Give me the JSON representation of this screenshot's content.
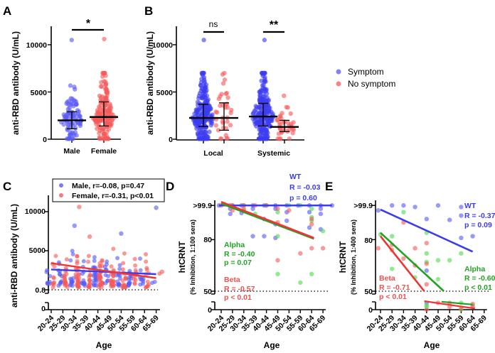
{
  "colors": {
    "blue": "#3b3bf0",
    "red": "#f03434",
    "green": "#21a321",
    "blue_point": "#5a5af5",
    "red_point": "#f55a5a",
    "green_point": "#4fdc4f"
  },
  "chart_data": [
    {
      "panel": "A",
      "type": "scatter",
      "ylabel": "anti-RBD antibody (U/mL)",
      "ylim": [
        0,
        12000
      ],
      "yticks": [
        "0",
        "5000",
        "10000"
      ],
      "categories": [
        "Male",
        "Female"
      ],
      "groups": [
        {
          "name": "Male",
          "color": "blue",
          "median": 2000,
          "q1": 1100,
          "q3": 2900,
          "max": 10500
        },
        {
          "name": "Female",
          "color": "red",
          "median": 2350,
          "q1": 1400,
          "q3": 3950,
          "max": 10600
        }
      ],
      "significance": "*"
    },
    {
      "panel": "B",
      "type": "scatter",
      "ylabel": "anti-RBD antibody (U/mL)",
      "ylim": [
        0,
        12000
      ],
      "yticks": [
        "0",
        "5000",
        "10000"
      ],
      "categories": [
        "Local",
        "Systemic"
      ],
      "legend": [
        "Symptom",
        "No symptom"
      ],
      "legend_position": "right",
      "groups": [
        {
          "category": "Local",
          "series": "Symptom",
          "median": 2250,
          "q1": 1350,
          "q3": 3700,
          "max": 10500
        },
        {
          "category": "Local",
          "series": "No symptom",
          "median": 2250,
          "q1": 950,
          "q3": 3850,
          "max": 5900
        },
        {
          "category": "Systemic",
          "series": "Symptom",
          "median": 2400,
          "q1": 1400,
          "q3": 3800,
          "max": 10500
        },
        {
          "category": "Systemic",
          "series": "No symptom",
          "median": 1300,
          "q1": 800,
          "q3": 2000,
          "max": 4600
        }
      ],
      "significance": [
        "ns",
        "**"
      ]
    },
    {
      "panel": "C",
      "type": "scatter",
      "xlabel": "Age",
      "ylabel": "anti-RBD antibody (U/mL)",
      "yticks": [
        "0",
        "0.8",
        "5000",
        "10000"
      ],
      "ylim": [
        0,
        12000
      ],
      "categories": [
        "20-24",
        "25-29",
        "30-34",
        "35-39",
        "40-44",
        "45-49",
        "50-54",
        "55-59",
        "60-64",
        "65-69"
      ],
      "legend": [
        "Male, r=-0.08, p=0.47",
        "Female, r=-0.31, p<0.01"
      ],
      "legend_position": "top",
      "fits": [
        {
          "series": "Male",
          "from": [
            0,
            2600
          ],
          "to": [
            9,
            2000
          ]
        },
        {
          "series": "Female",
          "from": [
            0,
            3400
          ],
          "to": [
            9,
            1500
          ]
        }
      ]
    },
    {
      "panel": "D",
      "type": "scatter",
      "xlabel": "Age",
      "ylabel": "htCRNT",
      "ylabel2": "(% Inhibition, 1:100 sera)",
      "yticks": [
        "0",
        "50",
        "80",
        ">99.9"
      ],
      "categories": [
        "20-24",
        "25-29",
        "30-34",
        "35-39",
        "40-44",
        "45-49",
        "50-54",
        "55-59",
        "60-64",
        "65-69"
      ],
      "annotations": {
        "wt": [
          "WT",
          "R = -0.03",
          "p = 0.60"
        ],
        "alpha": [
          "Alpha",
          "R = -0.40",
          "p = 0.07"
        ],
        "beta": [
          "Beta",
          "R = -0.57",
          "p < 0.01"
        ]
      },
      "series": [
        {
          "name": "WT",
          "color": "blue",
          "points": [
            [
              -0.2,
              99.9
            ],
            [
              0.8,
              99.9
            ],
            [
              0.8,
              98
            ],
            [
              0.8,
              95
            ],
            [
              1.8,
              99.9
            ],
            [
              1.8,
              95.5
            ],
            [
              2.8,
              99.9
            ],
            [
              2.8,
              98
            ],
            [
              2.8,
              82
            ],
            [
              3.8,
              99.9
            ],
            [
              3.8,
              92
            ],
            [
              3.8,
              82
            ],
            [
              4.8,
              99.9
            ],
            [
              4.8,
              98
            ],
            [
              4.8,
              89
            ],
            [
              4.8,
              81
            ],
            [
              5.8,
              99.9
            ],
            [
              5.8,
              96
            ],
            [
              5.8,
              91
            ],
            [
              6.8,
              99.9
            ],
            [
              7.8,
              99.9
            ],
            [
              7.8,
              96
            ],
            [
              7.8,
              87
            ],
            [
              8.8,
              99.9
            ],
            [
              8.8,
              98
            ],
            [
              8.8,
              95
            ],
            [
              8.8,
              86
            ],
            [
              9.8,
              99.9
            ]
          ],
          "fit": {
            "from": [
              -0.2,
              99.9
            ],
            "to": [
              9.8,
              99.9
            ]
          }
        },
        {
          "name": "Alpha",
          "color": "green",
          "points": [
            [
              1,
              99.9
            ],
            [
              2,
              99.9
            ],
            [
              2,
              97
            ],
            [
              3,
              95
            ],
            [
              4,
              99.9
            ],
            [
              5,
              96
            ],
            [
              5,
              82
            ],
            [
              5,
              60
            ],
            [
              6,
              99.9
            ],
            [
              7,
              99.9
            ],
            [
              8,
              98
            ],
            [
              8,
              93
            ],
            [
              8,
              60
            ],
            [
              7,
              55
            ],
            [
              8,
              91
            ],
            [
              9,
              85
            ]
          ],
          "fit": {
            "from": [
              0,
              101
            ],
            "to": [
              8.2,
              80.5
            ]
          }
        },
        {
          "name": "Beta",
          "color": "red",
          "points": [
            [
              0,
              99.9
            ],
            [
              1,
              99.9
            ],
            [
              1,
              97
            ],
            [
              2,
              99.9
            ],
            [
              2,
              98
            ],
            [
              3,
              99.9
            ],
            [
              4,
              99.9
            ],
            [
              5,
              98
            ],
            [
              5,
              90
            ],
            [
              5,
              68
            ],
            [
              6,
              97
            ],
            [
              7,
              72
            ],
            [
              8,
              92
            ],
            [
              8,
              89
            ],
            [
              8,
              75
            ],
            [
              9,
              75
            ]
          ],
          "fit": {
            "from": [
              0,
              102
            ],
            "to": [
              8.2,
              81
            ]
          }
        }
      ]
    },
    {
      "panel": "E",
      "type": "scatter",
      "xlabel": "Age",
      "ylabel": "htCRNT",
      "ylabel2": "(% Inhibition, 1:400 sera)",
      "yticks": [
        "0",
        "50",
        "80",
        ">99.9"
      ],
      "categories": [
        "20-24",
        "25-29",
        "30-34",
        "35-39",
        "40-44",
        "45-49",
        "50-54",
        "55-59",
        "60-64",
        "65-69"
      ],
      "annotations": {
        "wt": [
          "WT",
          "R = -0.37",
          "p = 0.09"
        ],
        "alpha": [
          "Alpha",
          "R = -0.60",
          "p < 0.01"
        ],
        "beta": [
          "Beta",
          "R = -0.71",
          "p < 0.01"
        ]
      },
      "series": [
        {
          "name": "WT",
          "color": "blue",
          "points": [
            [
              -0.2,
              97
            ],
            [
              1,
              99.9
            ],
            [
              2,
              99.9
            ],
            [
              3,
              99
            ],
            [
              4,
              92
            ],
            [
              5,
              99.9
            ],
            [
              6,
              91.5
            ],
            [
              7,
              99
            ],
            [
              7,
              94
            ],
            [
              7,
              81
            ],
            [
              8,
              82
            ],
            [
              4,
              62
            ],
            [
              4,
              12
            ]
          ],
          "fit": {
            "from": [
              0,
              97.5
            ],
            "to": [
              8,
              73
            ]
          }
        },
        {
          "name": "Alpha",
          "color": "green",
          "points": [
            [
              0,
              83
            ],
            [
              1,
              82
            ],
            [
              1,
              63
            ],
            [
              2,
              96
            ],
            [
              3,
              58
            ],
            [
              4,
              84
            ],
            [
              4,
              72
            ],
            [
              4,
              67
            ],
            [
              4,
              8
            ],
            [
              4,
              5
            ],
            [
              5,
              57
            ],
            [
              5,
              68
            ],
            [
              6,
              68
            ],
            [
              7,
              72
            ],
            [
              7,
              12
            ],
            [
              7,
              0
            ],
            [
              8,
              8
            ]
          ],
          "fit": {
            "from": [
              0,
              84
            ],
            "to": [
              5.5,
              50
            ]
          },
          "fit_low": {
            "from": [
              5.3,
              14
            ],
            "to": [
              8,
              9
            ]
          }
        },
        {
          "name": "Beta",
          "color": "red",
          "points": [
            [
              -0.2,
              75
            ],
            [
              1,
              77
            ],
            [
              1,
              74
            ],
            [
              2,
              90
            ],
            [
              2,
              69
            ],
            [
              3,
              75
            ],
            [
              3,
              65
            ],
            [
              4,
              78
            ],
            [
              4,
              66
            ],
            [
              4,
              54
            ],
            [
              4,
              0
            ],
            [
              5,
              12
            ],
            [
              6,
              12
            ],
            [
              6,
              5
            ],
            [
              7,
              2
            ],
            [
              8,
              5
            ],
            [
              8,
              10
            ]
          ],
          "fit": {
            "from": [
              0,
              82
            ],
            "to": [
              3.8,
              50
            ]
          },
          "fit_low": {
            "from": [
              3.8,
              15
            ],
            "to": [
              8.2,
              2
            ]
          }
        }
      ]
    }
  ]
}
